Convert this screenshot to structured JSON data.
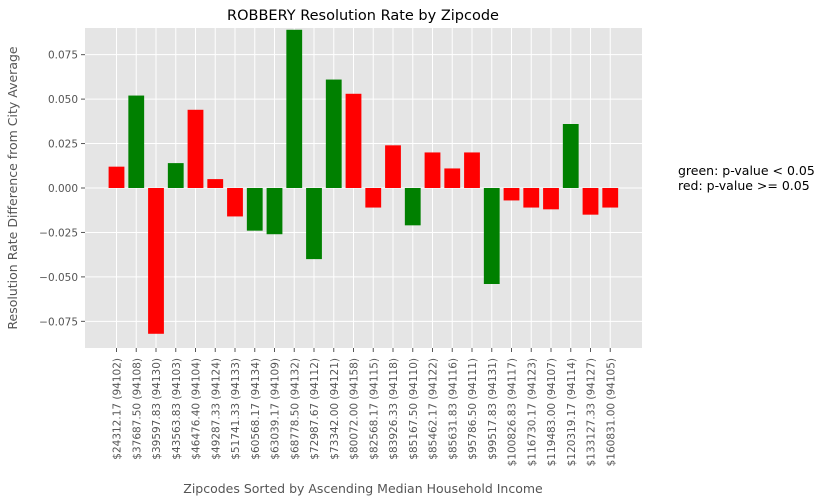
{
  "chart_data": {
    "type": "bar",
    "title": "ROBBERY Resolution Rate by Zipcode",
    "xlabel": "Zipcodes Sorted by Ascending Median Household Income",
    "ylabel": "Resolution Rate Difference from City Average",
    "ylim": [
      -0.09,
      0.09
    ],
    "yticks": [
      "0.075",
      "0.050",
      "0.025",
      "0.000",
      "−0.025",
      "−0.050",
      "−0.075"
    ],
    "ytick_values": [
      0.075,
      0.05,
      0.025,
      0.0,
      -0.025,
      -0.05,
      -0.075
    ],
    "grid": true,
    "colors": {
      "significant": "#008000",
      "not_significant": "#ff0000",
      "background": "#e5e5e5",
      "grid": "#ffffff"
    },
    "categories": [
      "$24312.17 (94102)",
      "$37687.50 (94108)",
      "$39597.83 (94130)",
      "$43563.83 (94103)",
      "$46476.40 (94104)",
      "$49287.33 (94124)",
      "$51741.33 (94133)",
      "$60568.17 (94134)",
      "$63039.17 (94109)",
      "$68778.50 (94132)",
      "$72987.67 (94112)",
      "$73342.00 (94121)",
      "$80072.00 (94158)",
      "$82568.17 (94115)",
      "$83926.33 (94118)",
      "$85167.50 (94110)",
      "$85462.17 (94122)",
      "$85631.83 (94116)",
      "$95786.50 (94111)",
      "$99517.83 (94131)",
      "$100826.83 (94117)",
      "$116730.17 (94123)",
      "$119483.00 (94107)",
      "$120319.17 (94114)",
      "$133127.33 (94127)",
      "$160831.00 (94105)"
    ],
    "values": [
      0.012,
      0.052,
      -0.082,
      0.014,
      0.044,
      0.005,
      -0.016,
      -0.024,
      -0.026,
      0.089,
      -0.04,
      0.061,
      0.053,
      -0.011,
      0.024,
      -0.021,
      0.02,
      0.011,
      0.02,
      -0.054,
      -0.007,
      -0.011,
      -0.012,
      0.036,
      -0.015,
      -0.011
    ],
    "significant": [
      false,
      true,
      false,
      true,
      false,
      false,
      false,
      true,
      true,
      true,
      true,
      true,
      false,
      false,
      false,
      true,
      false,
      false,
      false,
      true,
      false,
      false,
      false,
      true,
      false,
      false
    ],
    "legend": [
      "green: p-value < 0.05",
      "red: p-value >= 0.05"
    ]
  }
}
